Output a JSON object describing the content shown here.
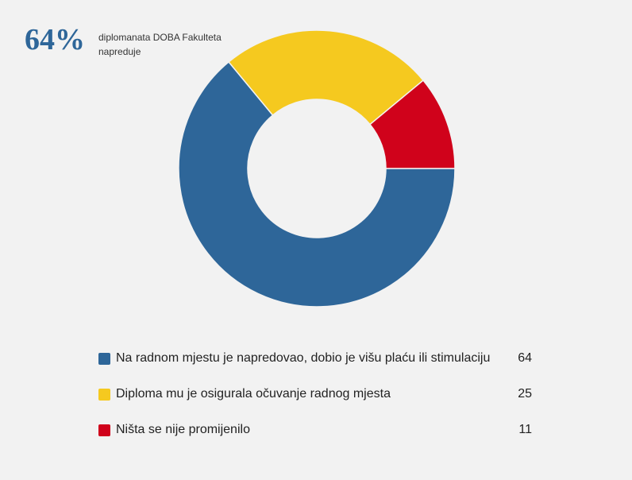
{
  "headline": {
    "value": "64%",
    "caption": "diplomanata DOBA Fakulteta napreduje"
  },
  "chart_data": {
    "type": "pie",
    "variant": "donut",
    "title": "",
    "categories": [
      "Na radnom mjestu je napredovao, dobio je višu plaću ili stimulaciju",
      "Diploma mu je osigurala očuvanje radnog mjesta",
      "Ništa se nije promijenilo"
    ],
    "values": [
      64,
      25,
      11
    ],
    "colors": [
      "#2e6699",
      "#f5c91f",
      "#d0021b"
    ],
    "legend_position": "bottom"
  }
}
